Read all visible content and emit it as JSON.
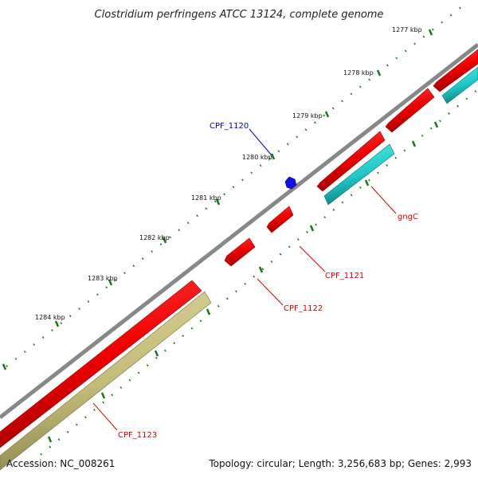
{
  "title": "Clostridium perfringens ATCC 13124, complete genome",
  "footer": {
    "accession": "Accession: NC_008261",
    "summary": "Topology: circular; Length: 3,256,683 bp; Genes: 2,993"
  },
  "ruler": {
    "unit": "kbp",
    "ticks": [
      {
        "label": "1277 kbp"
      },
      {
        "label": "1278 kbp"
      },
      {
        "label": "1279 kbp"
      },
      {
        "label": "1280 kbp"
      },
      {
        "label": "1281 kbp"
      },
      {
        "label": "1282 kbp"
      },
      {
        "label": "1283 kbp"
      },
      {
        "label": "1284 kbp"
      }
    ]
  },
  "gene_labels": {
    "cpf1120": "CPF_1120",
    "gngC": "gngC",
    "cpf1121": "CPF_1121",
    "cpf1122": "CPF_1122",
    "cpf1123": "CPF_1123"
  },
  "colors": {
    "backbone": "#8a8a8a",
    "cds": "#ff0000",
    "cds_dark": "#b00000",
    "rna": "#22d0d0",
    "rna_dark": "#108c8c",
    "other": "#c8c080",
    "other_dark": "#8a8450",
    "ruler": "#1a7a1a",
    "label_blue": "#0000cc",
    "label_red": "#dd0000"
  }
}
